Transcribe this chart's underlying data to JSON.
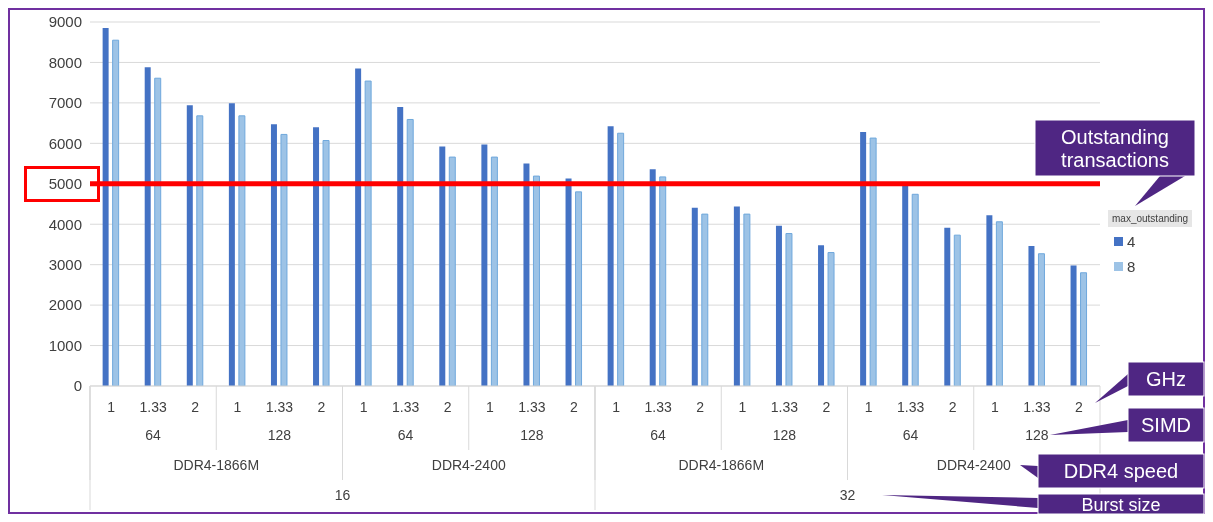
{
  "chart_data": {
    "type": "bar",
    "categories": [
      "1",
      "1.33",
      "2",
      "1",
      "1.33",
      "2",
      "1",
      "1.33",
      "2",
      "1",
      "1.33",
      "2",
      "1",
      "1.33",
      "2",
      "1",
      "1.33",
      "2",
      "1",
      "1.33",
      "2",
      "1",
      "1.33",
      "2"
    ],
    "series": [
      {
        "name": "4",
        "color": "#4472c4",
        "values": [
          8850,
          7880,
          6940,
          6990,
          6470,
          6400,
          7850,
          6900,
          5920,
          5970,
          5500,
          5130,
          6420,
          5360,
          4410,
          4440,
          3960,
          3480,
          6280,
          4950,
          3910,
          4220,
          3460,
          2980
        ]
      },
      {
        "name": "8",
        "color": "#9dc3e6",
        "values": [
          8550,
          7610,
          6680,
          6680,
          6220,
          6070,
          7540,
          6590,
          5660,
          5660,
          5190,
          4800,
          6250,
          5170,
          4250,
          4250,
          3770,
          3300,
          6130,
          4740,
          3730,
          4060,
          3270,
          2800
        ]
      }
    ],
    "legend_title": "max_outstanding",
    "legend": "right",
    "ylim": [
      0,
      9000
    ],
    "yticks": [
      0,
      1000,
      2000,
      3000,
      4000,
      5000,
      6000,
      7000,
      8000,
      9000
    ],
    "grid": "y",
    "ref_lines": [
      {
        "axis": "y",
        "value": 5000,
        "color": "#ff0000"
      }
    ],
    "annotations": [
      "64",
      "128",
      "64",
      "128",
      "64",
      "128",
      "64",
      "128",
      "DDR4-1866M",
      "DDR4-2400",
      "DDR4-1866M",
      "DDR4-2400",
      "16",
      "32",
      "GHz",
      "SIMD",
      "DDR4 speed",
      "Burst size",
      "Outstanding transactions"
    ]
  }
}
